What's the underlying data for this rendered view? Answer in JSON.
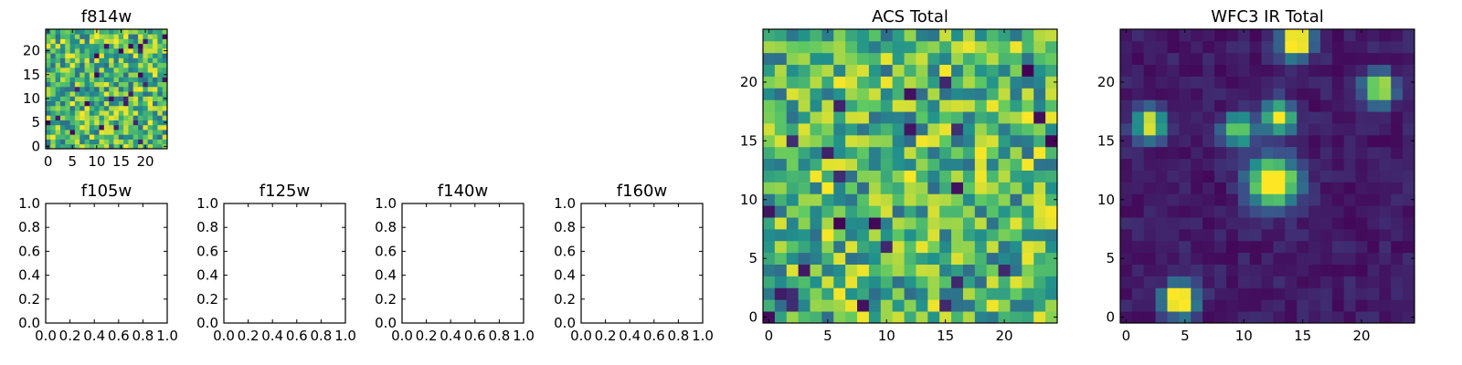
{
  "chart_data": [
    {
      "type": "heatmap",
      "title": "f814w",
      "image_size": [
        25,
        25
      ],
      "xlim": [
        -0.5,
        24.5
      ],
      "ylim": [
        -0.5,
        24.5
      ],
      "xticks": [
        0,
        5,
        10,
        15,
        20
      ],
      "yticks": [
        0,
        5,
        10,
        15,
        20
      ],
      "colormap": "viridis",
      "pattern": "random-uniform",
      "seed": 814
    },
    {
      "type": "heatmap",
      "title": "f105w",
      "empty": true,
      "xlim": [
        0,
        1
      ],
      "ylim": [
        0,
        1
      ],
      "xticks": [
        "0.0",
        "0.2",
        "0.4",
        "0.6",
        "0.8",
        "1.0"
      ],
      "yticks": [
        "0.0",
        "0.2",
        "0.4",
        "0.6",
        "0.8",
        "1.0"
      ]
    },
    {
      "type": "heatmap",
      "title": "f125w",
      "empty": true,
      "xlim": [
        0,
        1
      ],
      "ylim": [
        0,
        1
      ],
      "xticks": [
        "0.0",
        "0.2",
        "0.4",
        "0.6",
        "0.8",
        "1.0"
      ],
      "yticks": [
        "0.0",
        "0.2",
        "0.4",
        "0.6",
        "0.8",
        "1.0"
      ]
    },
    {
      "type": "heatmap",
      "title": "f140w",
      "empty": true,
      "xlim": [
        0,
        1
      ],
      "ylim": [
        0,
        1
      ],
      "xticks": [
        "0.0",
        "0.2",
        "0.4",
        "0.6",
        "0.8",
        "1.0"
      ],
      "yticks": [
        "0.0",
        "0.2",
        "0.4",
        "0.6",
        "0.8",
        "1.0"
      ]
    },
    {
      "type": "heatmap",
      "title": "f160w",
      "empty": true,
      "xlim": [
        0,
        1
      ],
      "ylim": [
        0,
        1
      ],
      "xticks": [
        "0.0",
        "0.2",
        "0.4",
        "0.6",
        "0.8",
        "1.0"
      ],
      "yticks": [
        "0.0",
        "0.2",
        "0.4",
        "0.6",
        "0.8",
        "1.0"
      ]
    },
    {
      "type": "heatmap",
      "title": "ACS Total",
      "image_size": [
        25,
        25
      ],
      "xlim": [
        -0.5,
        24.5
      ],
      "ylim": [
        -0.5,
        24.5
      ],
      "xticks": [
        0,
        5,
        10,
        15,
        20
      ],
      "yticks": [
        0,
        5,
        10,
        15,
        20
      ],
      "colormap": "viridis",
      "pattern": "random-uniform",
      "seed": 2017
    },
    {
      "type": "heatmap",
      "title": "WFC3 IR Total",
      "image_size": [
        25,
        25
      ],
      "xlim": [
        -0.5,
        24.5
      ],
      "ylim": [
        -0.5,
        24.5
      ],
      "xticks": [
        0,
        5,
        10,
        15,
        20
      ],
      "yticks": [
        0,
        5,
        10,
        15,
        20
      ],
      "colormap": "viridis",
      "pattern": "low-background-with-sources",
      "seed": 31,
      "sources": [
        {
          "x": 14.5,
          "y": 23.5,
          "peak": 1.0,
          "size": 2
        },
        {
          "x": 21.5,
          "y": 19.5,
          "peak": 0.8,
          "size": 2
        },
        {
          "x": 2,
          "y": 16.5,
          "peak": 0.75,
          "size": 2
        },
        {
          "x": 9.5,
          "y": 16,
          "peak": 0.65,
          "size": 2
        },
        {
          "x": 13,
          "y": 17,
          "peak": 0.7,
          "size": 2
        },
        {
          "x": 12.5,
          "y": 11.5,
          "peak": 1.0,
          "size": 3
        },
        {
          "x": 4.5,
          "y": 1.5,
          "peak": 1.0,
          "size": 2
        }
      ]
    }
  ]
}
